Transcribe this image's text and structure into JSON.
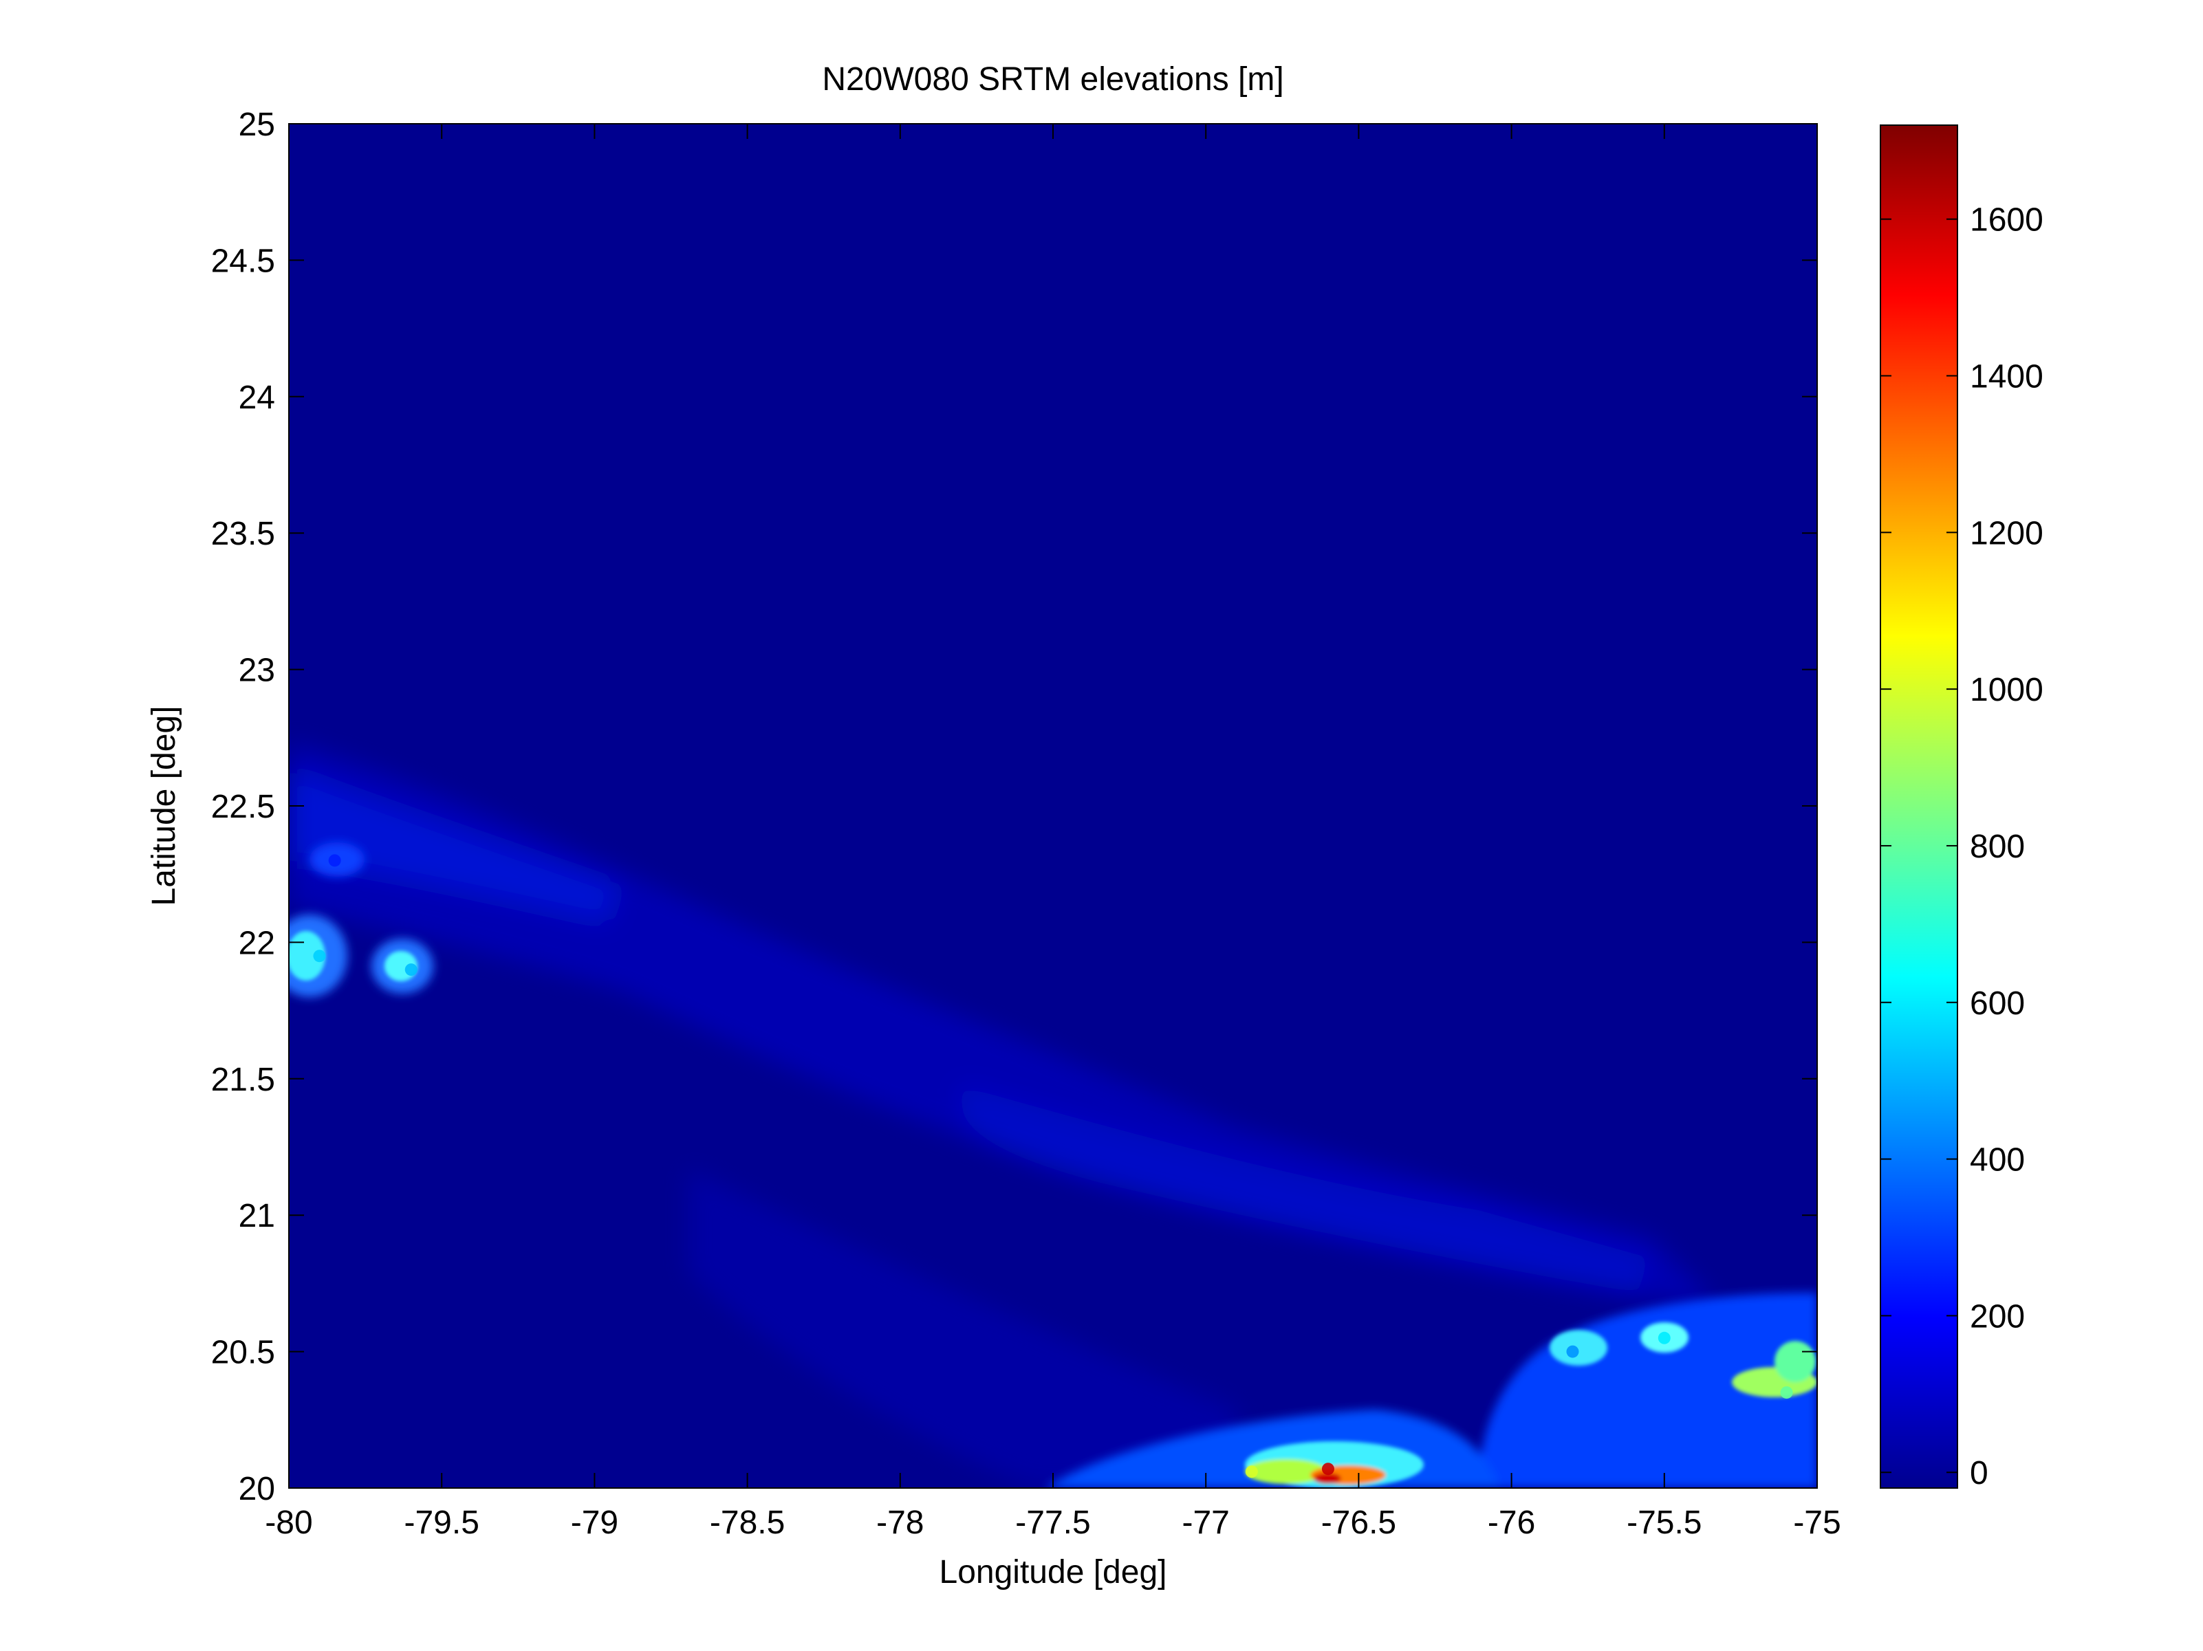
{
  "chart_data": {
    "type": "heatmap",
    "title": "N20W080 SRTM elevations [m]",
    "xlabel": "Longitude [deg]",
    "ylabel": "Latitude [deg]",
    "xlim": [
      -80,
      -75
    ],
    "ylim": [
      20,
      25
    ],
    "x_ticks": [
      -80,
      -79.5,
      -79,
      -78.5,
      -78,
      -77.5,
      -77,
      -76.5,
      -76,
      -75.5,
      -75
    ],
    "x_tick_labels": [
      "-80",
      "-79.5",
      "-79",
      "-78.5",
      "-78",
      "-77.5",
      "-77",
      "-76.5",
      "-76",
      "-75.5",
      "-75"
    ],
    "y_ticks": [
      20,
      20.5,
      21,
      21.5,
      22,
      22.5,
      23,
      23.5,
      24,
      24.5,
      25
    ],
    "y_tick_labels": [
      "20",
      "20.5",
      "21",
      "21.5",
      "22",
      "22.5",
      "23",
      "23.5",
      "24",
      "24.5",
      "25"
    ],
    "colorbar": {
      "colormap": "jet",
      "range": [
        -20,
        1720
      ],
      "ticks": [
        0,
        200,
        400,
        600,
        800,
        1000,
        1200,
        1400,
        1600
      ],
      "tick_labels": [
        "0",
        "200",
        "400",
        "600",
        "800",
        "1000",
        "1200",
        "1400",
        "1600"
      ]
    },
    "background_value": 0,
    "elevated_regions": [
      {
        "lon": -79.9,
        "lat": 21.95,
        "elev": 550
      },
      {
        "lon": -79.6,
        "lat": 21.9,
        "elev": 520
      },
      {
        "lon": -79.85,
        "lat": 22.3,
        "elev": 250
      },
      {
        "lon": -75.8,
        "lat": 20.5,
        "elev": 450
      },
      {
        "lon": -75.5,
        "lat": 20.55,
        "elev": 600
      },
      {
        "lon": -75.1,
        "lat": 20.35,
        "elev": 800
      },
      {
        "lon": -76.6,
        "lat": 20.07,
        "elev": 1600
      },
      {
        "lon": -76.85,
        "lat": 20.06,
        "elev": 1000
      }
    ],
    "grid": false
  }
}
